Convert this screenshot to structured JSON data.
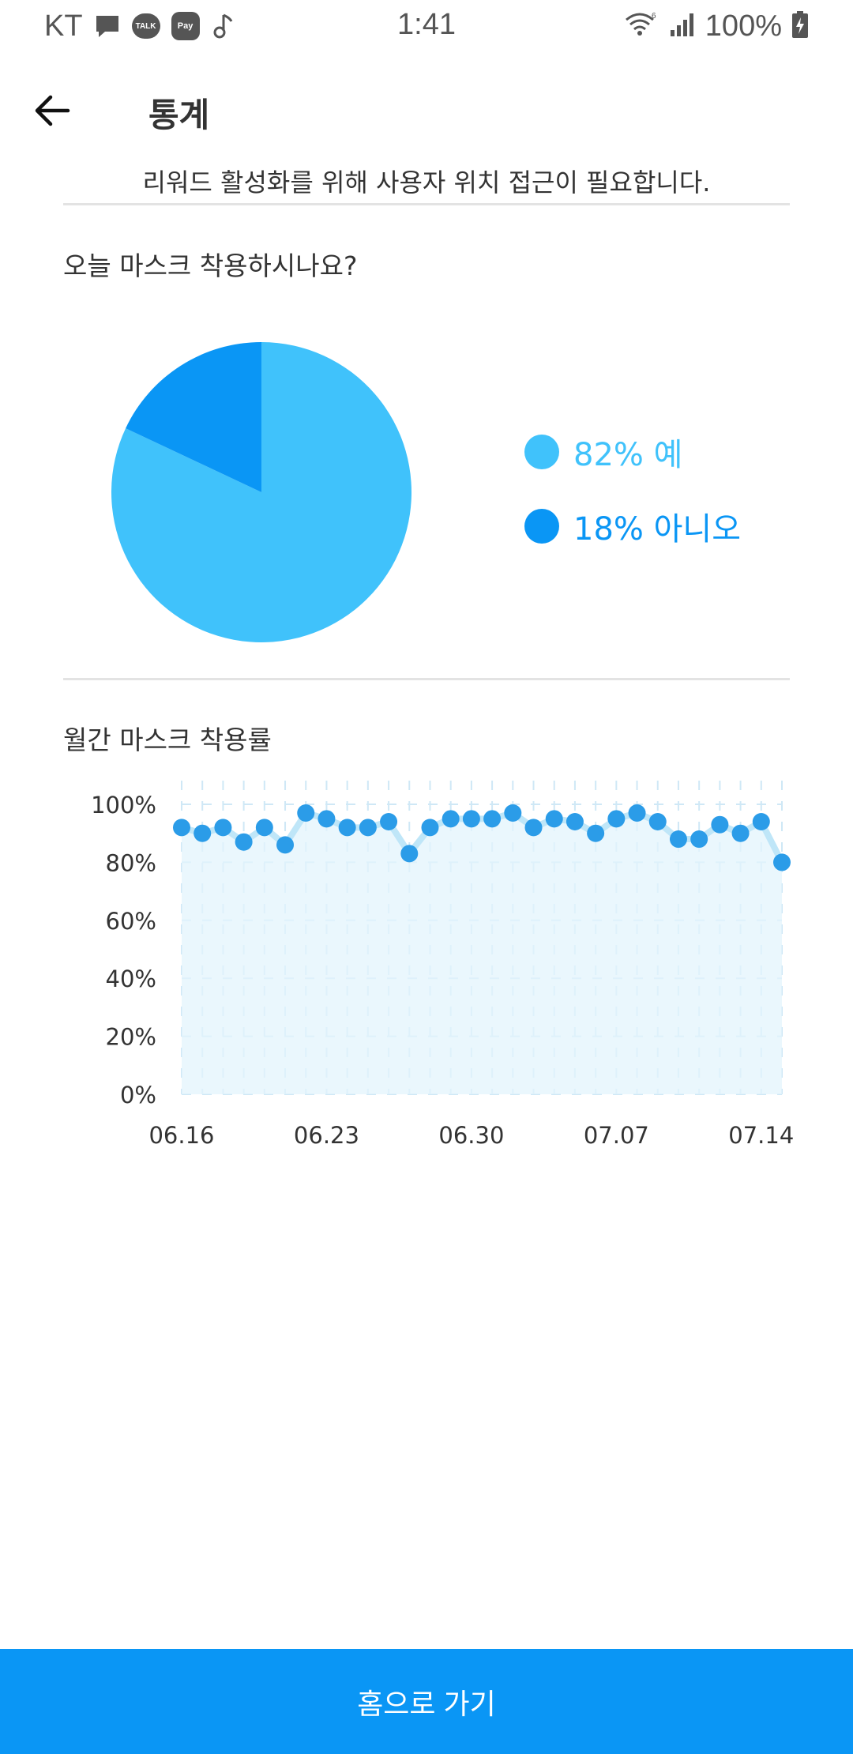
{
  "status_bar": {
    "carrier": "KT",
    "time": "1:41",
    "battery": "100%",
    "notification_icons": [
      "message-icon",
      "kakaotalk-icon",
      "kakaopay-icon",
      "music-note-icon"
    ],
    "talk_badge": "TALK",
    "pay_badge": "Pay",
    "right_icons": [
      "wifi-6-icon",
      "signal-bars-icon",
      "battery-charging-icon"
    ]
  },
  "header": {
    "title": "통계",
    "back_icon": "arrow-left-icon"
  },
  "notice": "리워드 활성화를 위해 사용자 위치 접근이 필요합니다.",
  "today_section": {
    "title": "오늘 마스크 착용하시나요?"
  },
  "monthly_section": {
    "title": "월간 마스크 착용률"
  },
  "colors": {
    "yes": "#40c2fb",
    "no": "#0a96f5",
    "line_point": "#2b9ce8",
    "line_fill": "#e3f4fc",
    "line_stroke": "#bfe6f8",
    "button": "#0a96f5"
  },
  "chart_data": [
    {
      "type": "pie",
      "values": [
        82,
        18
      ],
      "legend": [
        {
          "label": "82% 예",
          "value": 82,
          "color": "#40c2fb"
        },
        {
          "label": "18% 아니오",
          "value": 18,
          "color": "#0a96f5"
        }
      ],
      "legend_placement": "right"
    },
    {
      "type": "line",
      "x": [
        "06.16",
        "06.17",
        "06.18",
        "06.19",
        "06.20",
        "06.21",
        "06.22",
        "06.23",
        "06.24",
        "06.25",
        "06.26",
        "06.27",
        "06.28",
        "06.29",
        "06.30",
        "07.01",
        "07.02",
        "07.03",
        "07.04",
        "07.05",
        "07.06",
        "07.07",
        "07.08",
        "07.09",
        "07.10",
        "07.11",
        "07.12",
        "07.13",
        "07.14",
        "07.15"
      ],
      "values": [
        92,
        90,
        92,
        87,
        92,
        86,
        97,
        95,
        92,
        92,
        94,
        83,
        92,
        95,
        95,
        95,
        97,
        92,
        95,
        94,
        90,
        95,
        97,
        94,
        88,
        88,
        93,
        90,
        94,
        80
      ],
      "x_tick_labels": [
        "06.16",
        "06.23",
        "06.30",
        "07.07",
        "07.14"
      ],
      "y_tick_labels": [
        "0%",
        "20%",
        "40%",
        "60%",
        "80%",
        "100%"
      ],
      "ylim": [
        0,
        100
      ],
      "grid": true
    }
  ],
  "home_button": {
    "label": "홈으로 가기"
  }
}
